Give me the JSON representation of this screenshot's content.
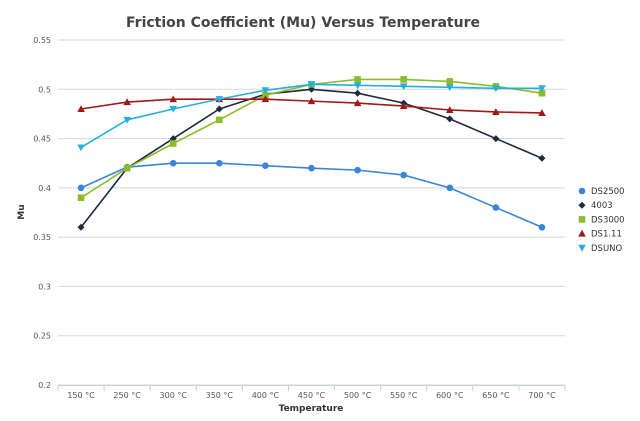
{
  "chart_data": {
    "type": "line",
    "title": "Friction Coefficient (Mu) Versus Temperature",
    "xlabel": "Temperature",
    "ylabel": "Mu",
    "categories": [
      "150 °C",
      "250 °C",
      "300 °C",
      "350 °C",
      "400 °C",
      "450 °C",
      "500 °C",
      "550 °C",
      "600 °C",
      "650 °C",
      "700 °C"
    ],
    "ylim": [
      0.2,
      0.55
    ],
    "yticks": [
      "0.2",
      "0.25",
      "0.3",
      "0.35",
      "0.4",
      "0.45",
      "0.5",
      "0.55"
    ],
    "grid": true,
    "legend": "right",
    "series": [
      {
        "name": "DS2500",
        "color": "#3a86d6",
        "marker": "circle",
        "values": [
          0.4,
          0.421,
          0.425,
          0.425,
          0.4225,
          0.42,
          0.418,
          0.413,
          0.4,
          0.38,
          0.36
        ]
      },
      {
        "name": "4003",
        "color": "#1c2a3f",
        "marker": "diamond",
        "values": [
          0.36,
          0.42,
          0.45,
          0.48,
          0.495,
          0.5,
          0.496,
          0.486,
          0.47,
          0.45,
          0.43
        ]
      },
      {
        "name": "DS3000",
        "color": "#8cbc2a",
        "marker": "square",
        "values": [
          0.39,
          0.42,
          0.445,
          0.469,
          0.494,
          0.505,
          0.51,
          0.51,
          0.508,
          0.503,
          0.496
        ]
      },
      {
        "name": "DS1.11",
        "color": "#a01818",
        "marker": "triangle",
        "values": [
          0.48,
          0.487,
          0.49,
          0.49,
          0.49,
          0.488,
          0.486,
          0.483,
          0.479,
          0.477,
          0.476
        ]
      },
      {
        "name": "DSUNO",
        "color": "#25b0dc",
        "marker": "triangle-down",
        "values": [
          0.441,
          0.469,
          0.48,
          0.49,
          0.499,
          0.505,
          0.504,
          0.503,
          0.502,
          0.501,
          0.501
        ]
      }
    ]
  }
}
